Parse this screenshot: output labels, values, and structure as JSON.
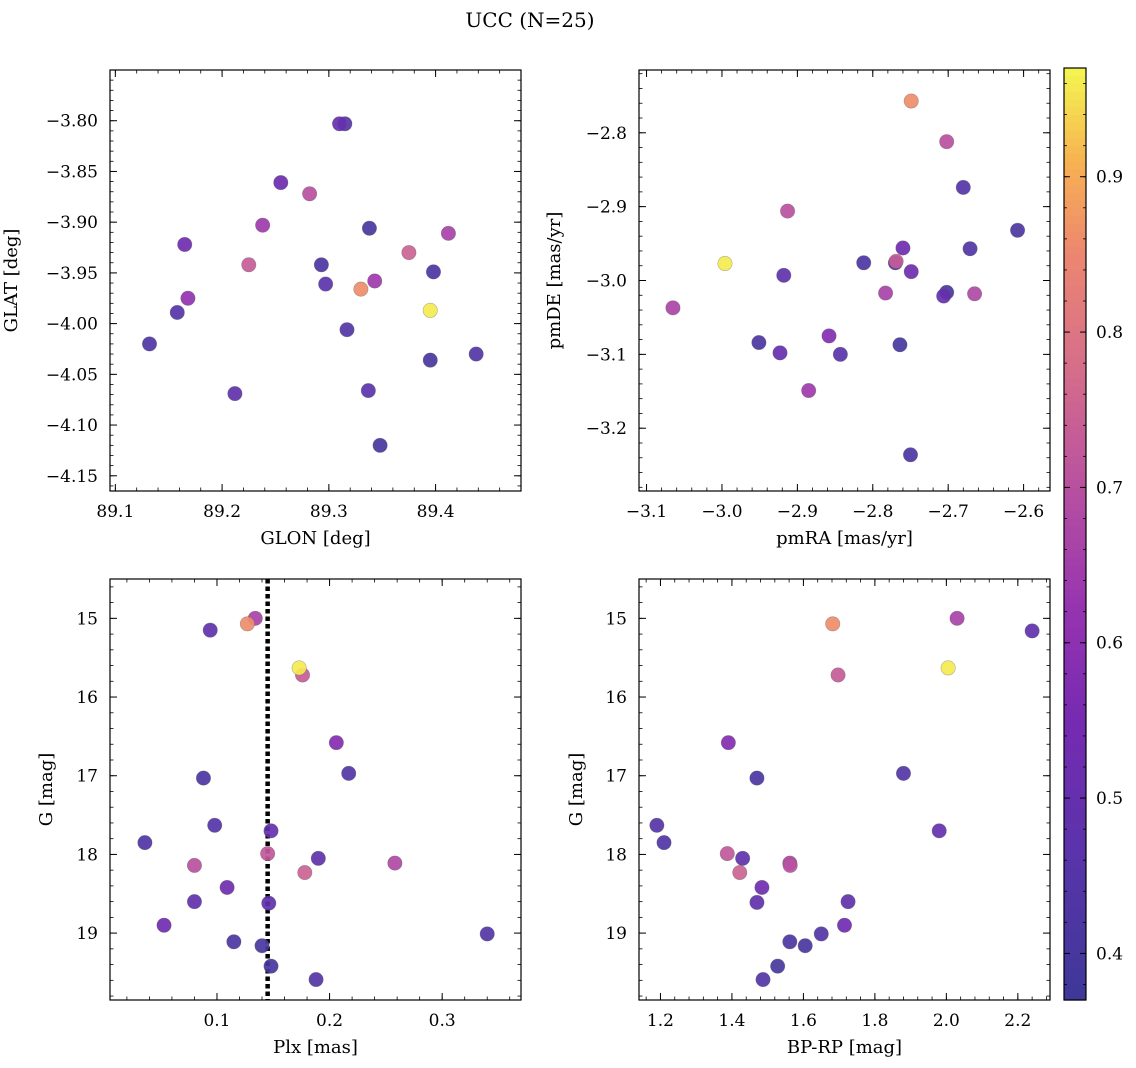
{
  "figure": {
    "title": "UCC (N=25)"
  },
  "colorbar": {
    "range": [
      0.37,
      0.97
    ],
    "ticks": [
      0.4,
      0.5,
      0.6,
      0.7,
      0.8,
      0.9
    ],
    "tick_labels": [
      "0.4",
      "0.5",
      "0.6",
      "0.7",
      "0.8",
      "0.9"
    ],
    "colormap": "plasma"
  },
  "chart_data": [
    {
      "type": "scatter",
      "title": "",
      "xlabel": "GLON [deg]",
      "ylabel": "GLAT [deg]",
      "xlim": [
        89.095,
        89.48
      ],
      "ylim": [
        -4.165,
        -3.75
      ],
      "y_inverted": false,
      "xticks": [
        89.1,
        89.2,
        89.3,
        89.4
      ],
      "xtick_labels": [
        "89.1",
        "89.2",
        "89.3",
        "89.4"
      ],
      "yticks": [
        -3.8,
        -3.85,
        -3.9,
        -3.95,
        -4.0,
        -4.05,
        -4.1,
        -4.15
      ],
      "ytick_labels": [
        "−3.80",
        "−3.85",
        "−3.90",
        "−3.95",
        "−4.00",
        "−4.05",
        "−4.10",
        "−4.15"
      ],
      "points": [
        {
          "x": 89.31,
          "y": -3.803,
          "c": 0.5
        },
        {
          "x": 89.315,
          "y": -3.803,
          "c": 0.46
        },
        {
          "x": 89.255,
          "y": -3.861,
          "c": 0.52
        },
        {
          "x": 89.282,
          "y": -3.872,
          "c": 0.7
        },
        {
          "x": 89.238,
          "y": -3.903,
          "c": 0.64
        },
        {
          "x": 89.338,
          "y": -3.906,
          "c": 0.4
        },
        {
          "x": 89.412,
          "y": -3.911,
          "c": 0.66
        },
        {
          "x": 89.165,
          "y": -3.922,
          "c": 0.53
        },
        {
          "x": 89.375,
          "y": -3.93,
          "c": 0.75
        },
        {
          "x": 89.225,
          "y": -3.942,
          "c": 0.73
        },
        {
          "x": 89.293,
          "y": -3.942,
          "c": 0.42
        },
        {
          "x": 89.398,
          "y": -3.949,
          "c": 0.42
        },
        {
          "x": 89.343,
          "y": -3.958,
          "c": 0.64
        },
        {
          "x": 89.297,
          "y": -3.961,
          "c": 0.47
        },
        {
          "x": 89.33,
          "y": -3.966,
          "c": 0.86
        },
        {
          "x": 89.168,
          "y": -3.975,
          "c": 0.61
        },
        {
          "x": 89.395,
          "y": -3.987,
          "c": 0.96
        },
        {
          "x": 89.158,
          "y": -3.989,
          "c": 0.45
        },
        {
          "x": 89.317,
          "y": -4.006,
          "c": 0.44
        },
        {
          "x": 89.132,
          "y": -4.02,
          "c": 0.43
        },
        {
          "x": 89.438,
          "y": -4.03,
          "c": 0.44
        },
        {
          "x": 89.395,
          "y": -4.036,
          "c": 0.41
        },
        {
          "x": 89.337,
          "y": -4.066,
          "c": 0.47
        },
        {
          "x": 89.212,
          "y": -4.069,
          "c": 0.48
        },
        {
          "x": 89.348,
          "y": -4.12,
          "c": 0.4
        }
      ]
    },
    {
      "type": "scatter",
      "title": "",
      "xlabel": "pmRA [mas/yr]",
      "ylabel": "pmDE [mas/yr]",
      "xlim": [
        -3.11,
        -2.565
      ],
      "ylim": [
        -3.285,
        -2.715
      ],
      "y_inverted": false,
      "xticks": [
        -3.1,
        -3.0,
        -2.9,
        -2.8,
        -2.7,
        -2.6
      ],
      "xtick_labels": [
        "−3.1",
        "−3.0",
        "−2.9",
        "−2.8",
        "−2.7",
        "−2.6"
      ],
      "yticks": [
        -2.8,
        -2.9,
        -3.0,
        -3.1,
        -3.2
      ],
      "ytick_labels": [
        "−2.8",
        "−2.9",
        "−3.0",
        "−3.1",
        "−3.2"
      ],
      "points": [
        {
          "x": -2.749,
          "y": -2.757,
          "c": 0.86
        },
        {
          "x": -2.702,
          "y": -2.812,
          "c": 0.7
        },
        {
          "x": -2.68,
          "y": -2.874,
          "c": 0.45
        },
        {
          "x": -2.913,
          "y": -2.906,
          "c": 0.7
        },
        {
          "x": -2.608,
          "y": -2.932,
          "c": 0.42
        },
        {
          "x": -2.76,
          "y": -2.956,
          "c": 0.53
        },
        {
          "x": -2.671,
          "y": -2.957,
          "c": 0.43
        },
        {
          "x": -2.996,
          "y": -2.977,
          "c": 0.96
        },
        {
          "x": -2.812,
          "y": -2.976,
          "c": 0.42
        },
        {
          "x": -2.77,
          "y": -2.976,
          "c": 0.43
        },
        {
          "x": -2.769,
          "y": -2.974,
          "c": 0.73
        },
        {
          "x": -2.749,
          "y": -2.988,
          "c": 0.53
        },
        {
          "x": -2.918,
          "y": -2.993,
          "c": 0.48
        },
        {
          "x": -2.783,
          "y": -3.017,
          "c": 0.66
        },
        {
          "x": -2.702,
          "y": -3.016,
          "c": 0.42
        },
        {
          "x": -2.706,
          "y": -3.021,
          "c": 0.5
        },
        {
          "x": -2.665,
          "y": -3.018,
          "c": 0.68
        },
        {
          "x": -3.065,
          "y": -3.037,
          "c": 0.67
        },
        {
          "x": -2.858,
          "y": -3.075,
          "c": 0.58
        },
        {
          "x": -2.951,
          "y": -3.084,
          "c": 0.42
        },
        {
          "x": -2.764,
          "y": -3.087,
          "c": 0.4
        },
        {
          "x": -2.923,
          "y": -3.098,
          "c": 0.5
        },
        {
          "x": -2.843,
          "y": -3.1,
          "c": 0.46
        },
        {
          "x": -2.885,
          "y": -3.149,
          "c": 0.64
        },
        {
          "x": -2.75,
          "y": -3.236,
          "c": 0.42
        }
      ]
    },
    {
      "type": "scatter",
      "title": "",
      "xlabel": "Plx [mas]",
      "ylabel": "G [mag]",
      "xlim": [
        0.005,
        0.37
      ],
      "ylim": [
        19.85,
        14.5
      ],
      "y_inverted": true,
      "xticks": [
        0.1,
        0.2,
        0.3
      ],
      "xtick_labels": [
        "0.1",
        "0.2",
        "0.3"
      ],
      "yticks": [
        15,
        16,
        17,
        18,
        19
      ],
      "ytick_labels": [
        "15",
        "16",
        "17",
        "18",
        "19"
      ],
      "vline": {
        "x": 0.145,
        "style": "dotted"
      },
      "points": [
        {
          "x": 0.127,
          "y": 15.07,
          "c": 0.86
        },
        {
          "x": 0.134,
          "y": 15.0,
          "c": 0.66
        },
        {
          "x": 0.094,
          "y": 15.15,
          "c": 0.48
        },
        {
          "x": 0.173,
          "y": 15.63,
          "c": 0.96
        },
        {
          "x": 0.176,
          "y": 15.72,
          "c": 0.73
        },
        {
          "x": 0.206,
          "y": 16.58,
          "c": 0.58
        },
        {
          "x": 0.217,
          "y": 16.97,
          "c": 0.44
        },
        {
          "x": 0.088,
          "y": 17.03,
          "c": 0.42
        },
        {
          "x": 0.098,
          "y": 17.63,
          "c": 0.45
        },
        {
          "x": 0.148,
          "y": 17.7,
          "c": 0.5
        },
        {
          "x": 0.036,
          "y": 17.85,
          "c": 0.43
        },
        {
          "x": 0.145,
          "y": 17.99,
          "c": 0.72
        },
        {
          "x": 0.19,
          "y": 18.05,
          "c": 0.48
        },
        {
          "x": 0.258,
          "y": 18.11,
          "c": 0.68
        },
        {
          "x": 0.08,
          "y": 18.14,
          "c": 0.7
        },
        {
          "x": 0.178,
          "y": 18.23,
          "c": 0.75
        },
        {
          "x": 0.109,
          "y": 18.42,
          "c": 0.53
        },
        {
          "x": 0.08,
          "y": 18.6,
          "c": 0.49
        },
        {
          "x": 0.146,
          "y": 18.62,
          "c": 0.48
        },
        {
          "x": 0.053,
          "y": 18.9,
          "c": 0.53
        },
        {
          "x": 0.34,
          "y": 19.01,
          "c": 0.44
        },
        {
          "x": 0.115,
          "y": 19.11,
          "c": 0.42
        },
        {
          "x": 0.14,
          "y": 19.16,
          "c": 0.41
        },
        {
          "x": 0.148,
          "y": 19.42,
          "c": 0.4
        },
        {
          "x": 0.188,
          "y": 19.59,
          "c": 0.44
        }
      ]
    },
    {
      "type": "scatter",
      "title": "",
      "xlabel": "BP-RP [mag]",
      "ylabel": "G [mag]",
      "xlim": [
        1.14,
        2.29
      ],
      "ylim": [
        19.85,
        14.5
      ],
      "y_inverted": true,
      "xticks": [
        1.2,
        1.4,
        1.6,
        1.8,
        2.0,
        2.2
      ],
      "xtick_labels": [
        "1.2",
        "1.4",
        "1.6",
        "1.8",
        "2.0",
        "2.2"
      ],
      "yticks": [
        15,
        16,
        17,
        18,
        19
      ],
      "ytick_labels": [
        "15",
        "16",
        "17",
        "18",
        "19"
      ],
      "points": [
        {
          "x": 1.682,
          "y": 15.07,
          "c": 0.86
        },
        {
          "x": 2.03,
          "y": 15.0,
          "c": 0.66
        },
        {
          "x": 2.24,
          "y": 15.16,
          "c": 0.48
        },
        {
          "x": 2.005,
          "y": 15.63,
          "c": 0.96
        },
        {
          "x": 1.697,
          "y": 15.72,
          "c": 0.73
        },
        {
          "x": 1.39,
          "y": 16.58,
          "c": 0.58
        },
        {
          "x": 1.88,
          "y": 16.97,
          "c": 0.44
        },
        {
          "x": 1.47,
          "y": 17.03,
          "c": 0.42
        },
        {
          "x": 1.19,
          "y": 17.63,
          "c": 0.45
        },
        {
          "x": 1.98,
          "y": 17.7,
          "c": 0.5
        },
        {
          "x": 1.21,
          "y": 17.85,
          "c": 0.43
        },
        {
          "x": 1.387,
          "y": 17.99,
          "c": 0.72
        },
        {
          "x": 1.43,
          "y": 18.05,
          "c": 0.48
        },
        {
          "x": 1.562,
          "y": 18.11,
          "c": 0.68
        },
        {
          "x": 1.563,
          "y": 18.14,
          "c": 0.7
        },
        {
          "x": 1.422,
          "y": 18.23,
          "c": 0.75
        },
        {
          "x": 1.484,
          "y": 18.42,
          "c": 0.53
        },
        {
          "x": 1.47,
          "y": 18.61,
          "c": 0.49
        },
        {
          "x": 1.725,
          "y": 18.6,
          "c": 0.48
        },
        {
          "x": 1.715,
          "y": 18.9,
          "c": 0.53
        },
        {
          "x": 1.65,
          "y": 19.01,
          "c": 0.44
        },
        {
          "x": 1.562,
          "y": 19.11,
          "c": 0.42
        },
        {
          "x": 1.605,
          "y": 19.16,
          "c": 0.41
        },
        {
          "x": 1.528,
          "y": 19.42,
          "c": 0.4
        },
        {
          "x": 1.487,
          "y": 19.59,
          "c": 0.44
        }
      ]
    }
  ]
}
